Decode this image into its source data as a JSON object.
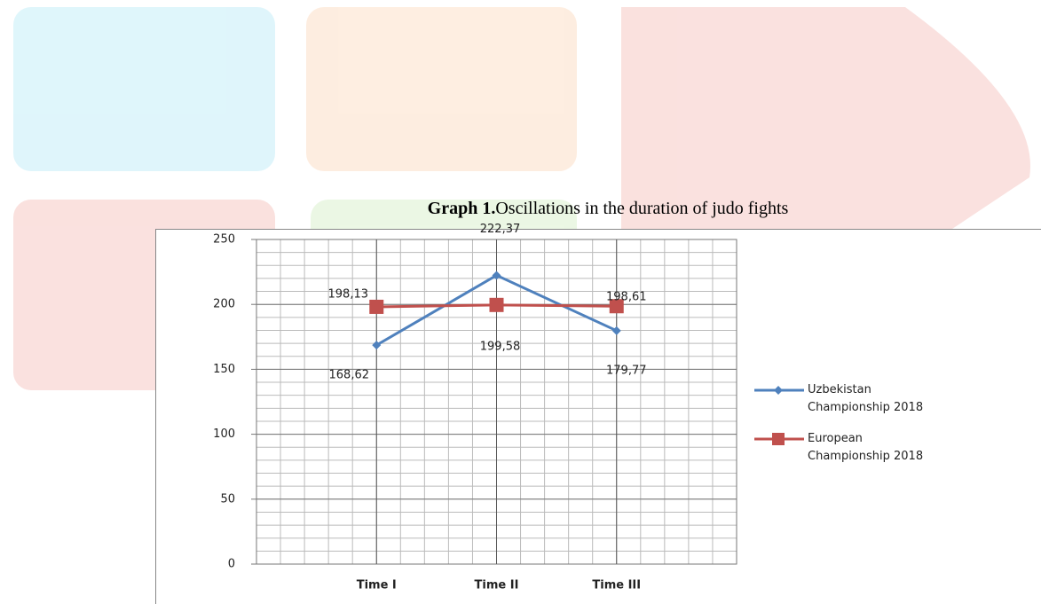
{
  "caption": {
    "label": "Graph 1.",
    "text": "Oscillations in the duration of judo fights"
  },
  "chart_data": {
    "type": "line",
    "categories": [
      "Time I",
      "Time II",
      "Time III"
    ],
    "series": [
      {
        "name": "Uzbekistan Championship 2018",
        "color": "#4f81bd",
        "marker": "diamond",
        "values": [
          168.62,
          222.37,
          179.77
        ],
        "value_labels": [
          "168,62",
          "222,37",
          "179,77"
        ]
      },
      {
        "name": "European Championship 2018",
        "color": "#c0504d",
        "marker": "square",
        "values": [
          198.13,
          199.58,
          198.61
        ],
        "value_labels": [
          "198,13",
          "199,58",
          "198,61"
        ]
      }
    ],
    "ylim": [
      0,
      250
    ],
    "yticks": [
      0,
      50,
      100,
      150,
      200,
      250
    ],
    "grid": true,
    "legend": "right"
  }
}
